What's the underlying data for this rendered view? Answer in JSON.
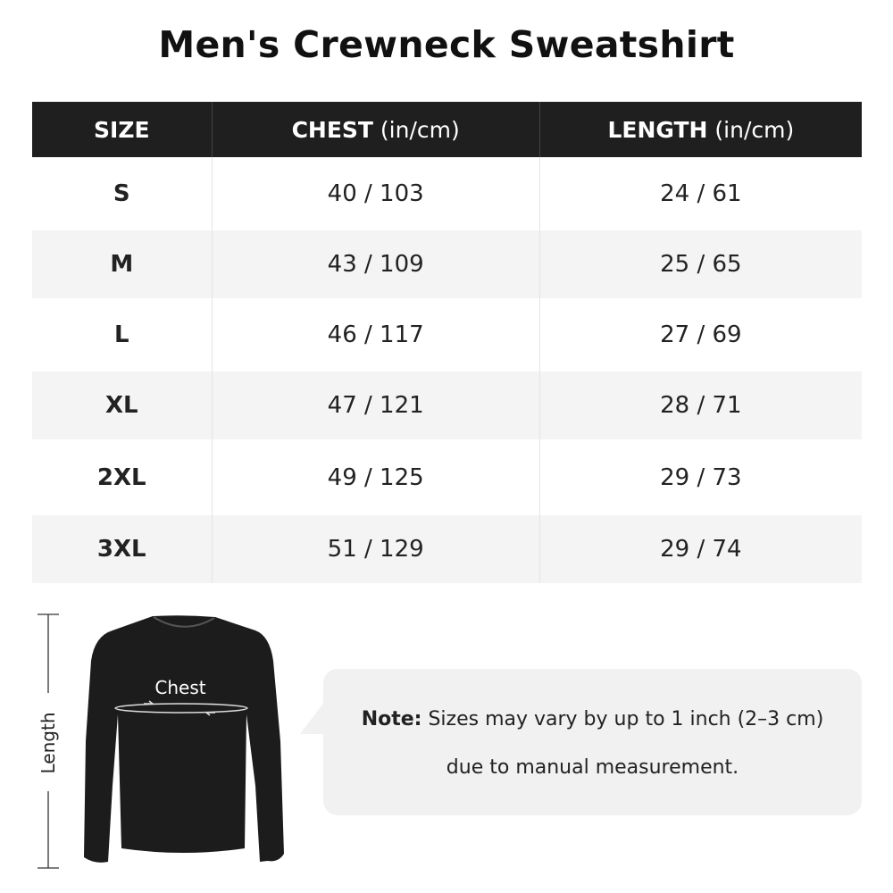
{
  "title": "Men's Crewneck Sweatshirt",
  "table": {
    "headers": [
      {
        "label": "SIZE",
        "unit": ""
      },
      {
        "label": "CHEST",
        "unit": " (in/cm)"
      },
      {
        "label": "LENGTH",
        "unit": " (in/cm)"
      }
    ],
    "rows": [
      [
        "S",
        "40 / 103",
        "24 / 61"
      ],
      [
        "M",
        "43 / 109",
        "25 / 65"
      ],
      [
        "L",
        "46 / 117",
        "27 / 69"
      ],
      [
        "XL",
        "47 / 121",
        "28 / 71"
      ],
      [
        "2XL",
        "49 / 125",
        "29 / 73"
      ],
      [
        "3XL",
        "51 / 129",
        "29 / 74"
      ]
    ]
  },
  "diagram": {
    "chest_label": "Chest",
    "length_label": "Length"
  },
  "note": {
    "bold": "Note:",
    "line1": " Sizes may vary by up to 1 inch (2–3 cm)",
    "line2": "due to manual measurement."
  },
  "colors": {
    "header_bg": "#1f1f1f",
    "alt_row": "#f4f4f4",
    "bubble": "#f1f1f1"
  }
}
